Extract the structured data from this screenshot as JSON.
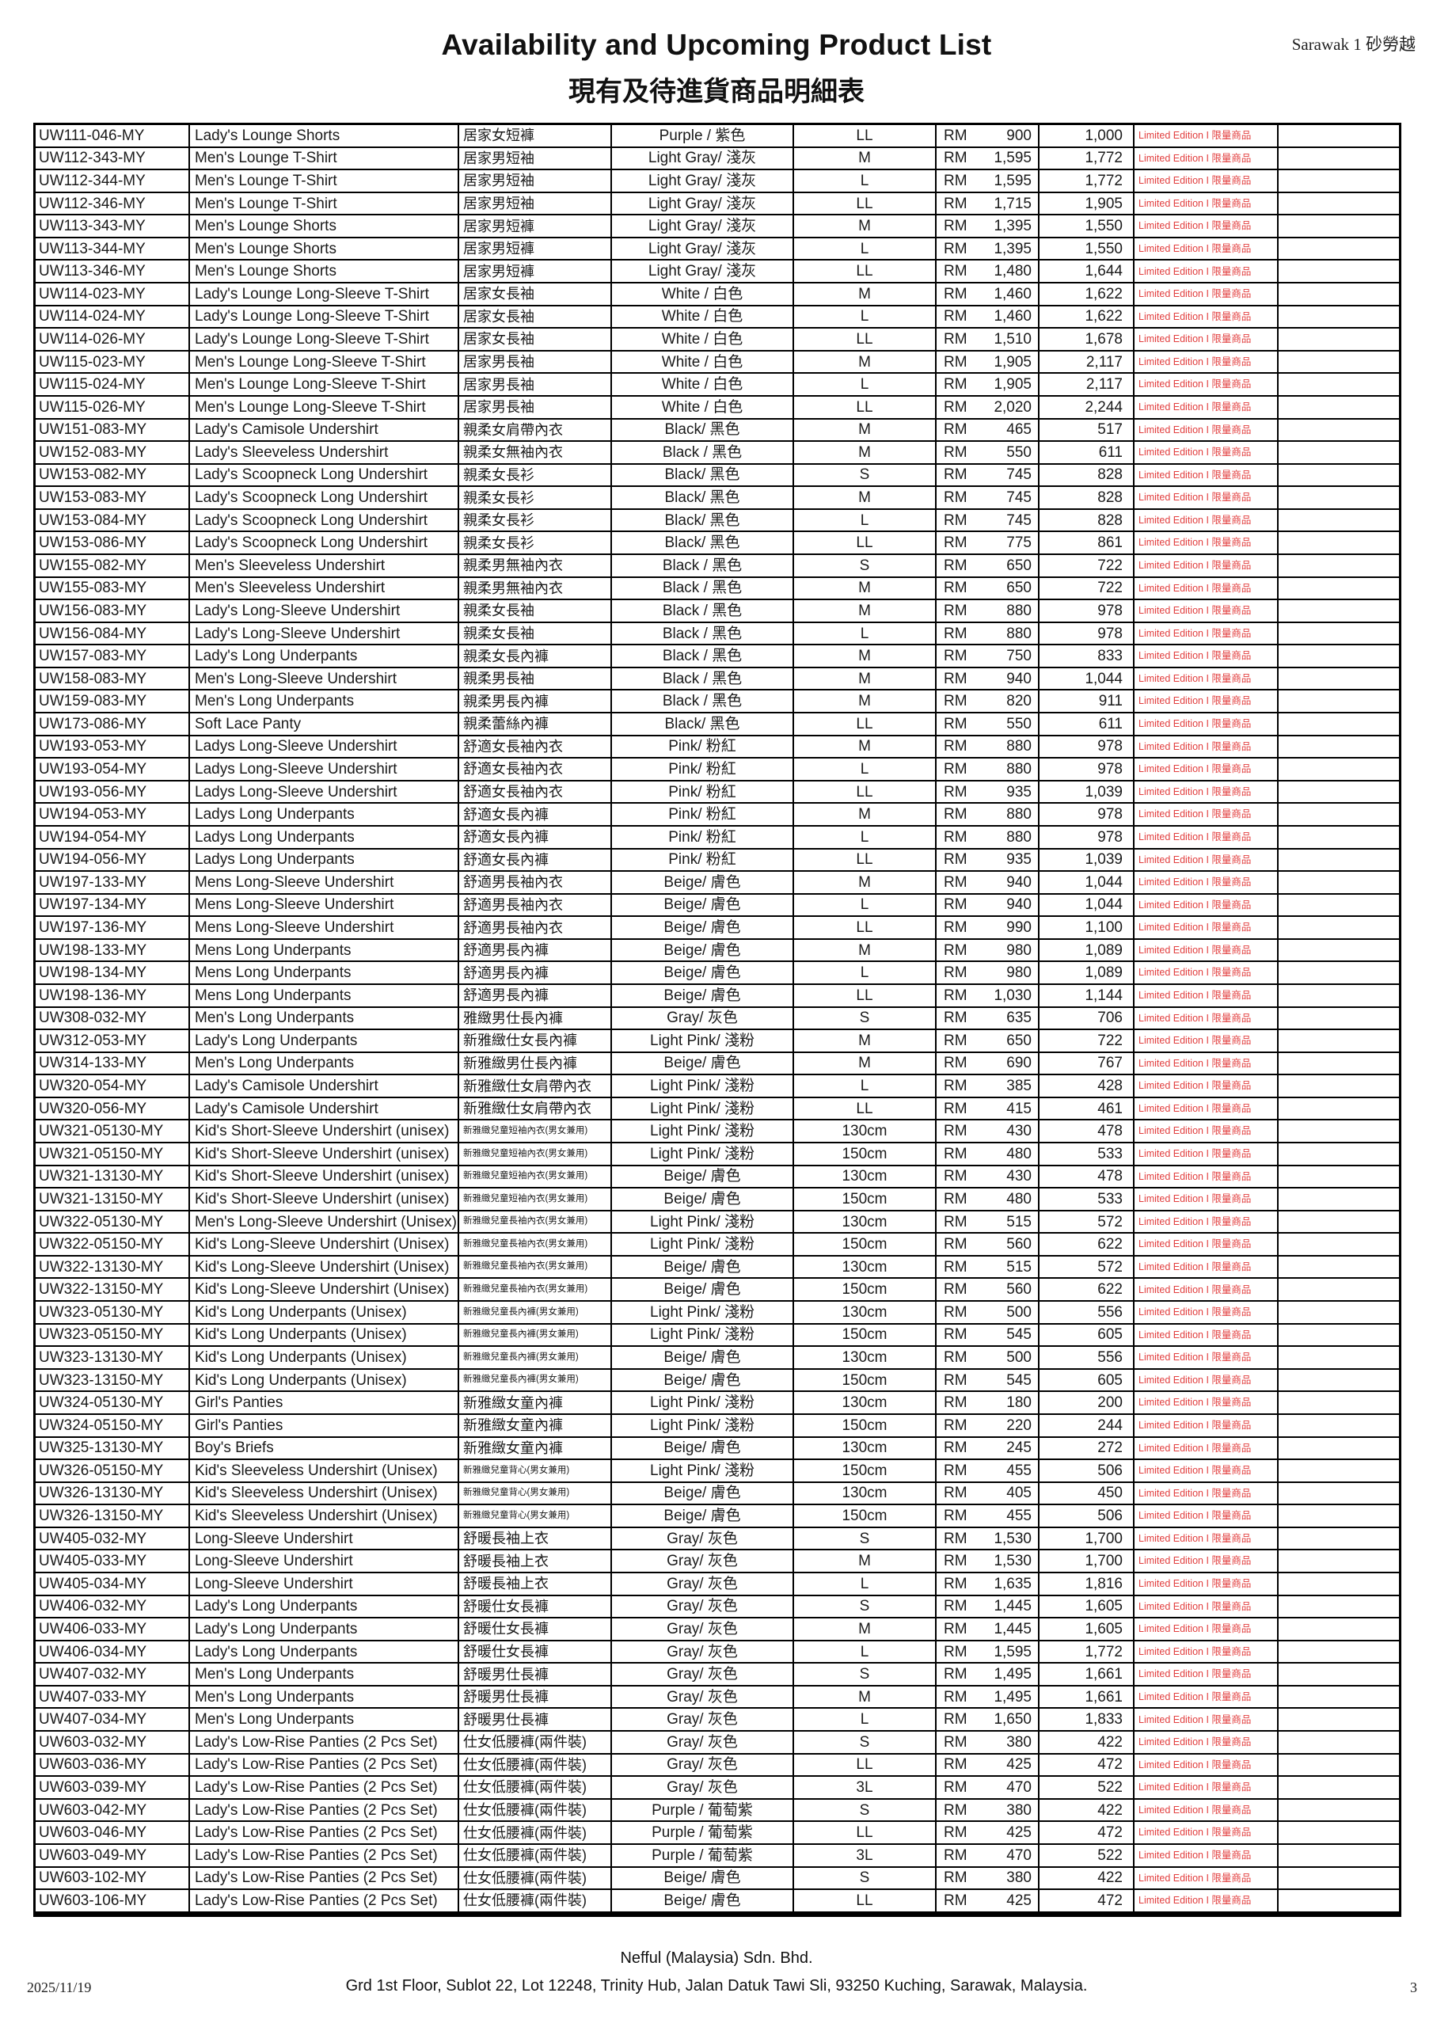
{
  "header": {
    "title": "Availability and Upcoming Product List",
    "subtitle_zh": "現有及待進貨商品明細表",
    "region": "Sarawak 1 砂勞越"
  },
  "table": {
    "badge_label": "Limited Edition I 限量商品",
    "badge_color": "#e23e3e",
    "currency": "RM",
    "columns": [
      "code",
      "name_en",
      "name_zh",
      "color",
      "size",
      "price",
      "qty",
      "small_zh_flag"
    ],
    "rows": [
      [
        "UW111-046-MY",
        "Lady's Lounge Shorts",
        "居家女短褲",
        "Purple / 紫色",
        "LL",
        "900",
        "1,000",
        0
      ],
      [
        "UW112-343-MY",
        "Men's Lounge T-Shirt",
        "居家男短袖",
        "Light Gray/ 淺灰",
        "M",
        "1,595",
        "1,772",
        0
      ],
      [
        "UW112-344-MY",
        "Men's Lounge T-Shirt",
        "居家男短袖",
        "Light Gray/ 淺灰",
        "L",
        "1,595",
        "1,772",
        0
      ],
      [
        "UW112-346-MY",
        "Men's Lounge T-Shirt",
        "居家男短袖",
        "Light Gray/ 淺灰",
        "LL",
        "1,715",
        "1,905",
        0
      ],
      [
        "UW113-343-MY",
        "Men's Lounge Shorts",
        "居家男短褲",
        "Light Gray/ 淺灰",
        "M",
        "1,395",
        "1,550",
        0
      ],
      [
        "UW113-344-MY",
        "Men's Lounge Shorts",
        "居家男短褲",
        "Light Gray/ 淺灰",
        "L",
        "1,395",
        "1,550",
        0
      ],
      [
        "UW113-346-MY",
        "Men's Lounge Shorts",
        "居家男短褲",
        "Light Gray/ 淺灰",
        "LL",
        "1,480",
        "1,644",
        0
      ],
      [
        "UW114-023-MY",
        "Lady's Lounge Long-Sleeve T-Shirt",
        "居家女長袖",
        "White / 白色",
        "M",
        "1,460",
        "1,622",
        0
      ],
      [
        "UW114-024-MY",
        "Lady's Lounge Long-Sleeve T-Shirt",
        "居家女長袖",
        "White / 白色",
        "L",
        "1,460",
        "1,622",
        0
      ],
      [
        "UW114-026-MY",
        "Lady's Lounge Long-Sleeve T-Shirt",
        "居家女長袖",
        "White / 白色",
        "LL",
        "1,510",
        "1,678",
        0
      ],
      [
        "UW115-023-MY",
        "Men's Lounge Long-Sleeve T-Shirt",
        "居家男長袖",
        "White / 白色",
        "M",
        "1,905",
        "2,117",
        0
      ],
      [
        "UW115-024-MY",
        "Men's Lounge Long-Sleeve T-Shirt",
        "居家男長袖",
        "White / 白色",
        "L",
        "1,905",
        "2,117",
        0
      ],
      [
        "UW115-026-MY",
        "Men's Lounge Long-Sleeve T-Shirt",
        "居家男長袖",
        "White / 白色",
        "LL",
        "2,020",
        "2,244",
        0
      ],
      [
        "UW151-083-MY",
        "Lady's Camisole Undershirt",
        "親柔女肩帶內衣",
        "Black/ 黑色",
        "M",
        "465",
        "517",
        0
      ],
      [
        "UW152-083-MY",
        "Lady's Sleeveless Undershirt",
        "親柔女無袖內衣",
        "Black / 黑色",
        "M",
        "550",
        "611",
        0
      ],
      [
        "UW153-082-MY",
        "Lady's Scoopneck Long Undershirt",
        "親柔女長衫",
        "Black/ 黑色",
        "S",
        "745",
        "828",
        0
      ],
      [
        "UW153-083-MY",
        "Lady's Scoopneck Long Undershirt",
        "親柔女長衫",
        "Black/ 黑色",
        "M",
        "745",
        "828",
        0
      ],
      [
        "UW153-084-MY",
        "Lady's Scoopneck Long Undershirt",
        "親柔女長衫",
        "Black/ 黑色",
        "L",
        "745",
        "828",
        0
      ],
      [
        "UW153-086-MY",
        "Lady's Scoopneck Long Undershirt",
        "親柔女長衫",
        "Black/ 黑色",
        "LL",
        "775",
        "861",
        0
      ],
      [
        "UW155-082-MY",
        "Men's Sleeveless Undershirt",
        "親柔男無袖內衣",
        "Black / 黑色",
        "S",
        "650",
        "722",
        0
      ],
      [
        "UW155-083-MY",
        "Men's Sleeveless Undershirt",
        "親柔男無袖內衣",
        "Black / 黑色",
        "M",
        "650",
        "722",
        0
      ],
      [
        "UW156-083-MY",
        "Lady's Long-Sleeve Undershirt",
        "親柔女長袖",
        "Black / 黑色",
        "M",
        "880",
        "978",
        0
      ],
      [
        "UW156-084-MY",
        "Lady's Long-Sleeve Undershirt",
        "親柔女長袖",
        "Black / 黑色",
        "L",
        "880",
        "978",
        0
      ],
      [
        "UW157-083-MY",
        "Lady's Long Underpants",
        "親柔女長內褲",
        "Black / 黑色",
        "M",
        "750",
        "833",
        0
      ],
      [
        "UW158-083-MY",
        "Men's Long-Sleeve Undershirt",
        "親柔男長袖",
        "Black / 黑色",
        "M",
        "940",
        "1,044",
        0
      ],
      [
        "UW159-083-MY",
        "Men's Long Underpants",
        "親柔男長內褲",
        "Black / 黑色",
        "M",
        "820",
        "911",
        0
      ],
      [
        "UW173-086-MY",
        "Soft Lace Panty",
        "親柔蕾絲內褲",
        "Black/ 黑色",
        "LL",
        "550",
        "611",
        0
      ],
      [
        "UW193-053-MY",
        "Ladys Long-Sleeve Undershirt",
        "舒適女長袖內衣",
        "Pink/ 粉紅",
        "M",
        "880",
        "978",
        0
      ],
      [
        "UW193-054-MY",
        "Ladys Long-Sleeve Undershirt",
        "舒適女長袖內衣",
        "Pink/ 粉紅",
        "L",
        "880",
        "978",
        0
      ],
      [
        "UW193-056-MY",
        "Ladys Long-Sleeve Undershirt",
        "舒適女長袖內衣",
        "Pink/ 粉紅",
        "LL",
        "935",
        "1,039",
        0
      ],
      [
        "UW194-053-MY",
        "Ladys Long Underpants",
        "舒適女長內褲",
        "Pink/ 粉紅",
        "M",
        "880",
        "978",
        0
      ],
      [
        "UW194-054-MY",
        "Ladys Long Underpants",
        "舒適女長內褲",
        "Pink/ 粉紅",
        "L",
        "880",
        "978",
        0
      ],
      [
        "UW194-056-MY",
        "Ladys Long Underpants",
        "舒適女長內褲",
        "Pink/ 粉紅",
        "LL",
        "935",
        "1,039",
        0
      ],
      [
        "UW197-133-MY",
        "Mens Long-Sleeve Undershirt",
        "舒適男長袖內衣",
        "Beige/ 膚色",
        "M",
        "940",
        "1,044",
        0
      ],
      [
        "UW197-134-MY",
        "Mens Long-Sleeve Undershirt",
        "舒適男長袖內衣",
        "Beige/ 膚色",
        "L",
        "940",
        "1,044",
        0
      ],
      [
        "UW197-136-MY",
        "Mens Long-Sleeve Undershirt",
        "舒適男長袖內衣",
        "Beige/ 膚色",
        "LL",
        "990",
        "1,100",
        0
      ],
      [
        "UW198-133-MY",
        "Mens Long Underpants",
        "舒適男長內褲",
        "Beige/ 膚色",
        "M",
        "980",
        "1,089",
        0
      ],
      [
        "UW198-134-MY",
        "Mens Long Underpants",
        "舒適男長內褲",
        "Beige/ 膚色",
        "L",
        "980",
        "1,089",
        0
      ],
      [
        "UW198-136-MY",
        "Mens Long Underpants",
        "舒適男長內褲",
        "Beige/ 膚色",
        "LL",
        "1,030",
        "1,144",
        0
      ],
      [
        "UW308-032-MY",
        "Men's Long Underpants",
        "雅緻男仕長內褲",
        "Gray/ 灰色",
        "S",
        "635",
        "706",
        0
      ],
      [
        "UW312-053-MY",
        "Lady's Long Underpants",
        "新雅緻仕女長內褲",
        "Light Pink/ 淺粉",
        "M",
        "650",
        "722",
        0
      ],
      [
        "UW314-133-MY",
        "Men's Long Underpants",
        "新雅緻男仕長內褲",
        "Beige/ 膚色",
        "M",
        "690",
        "767",
        0
      ],
      [
        "UW320-054-MY",
        "Lady's Camisole Undershirt",
        "新雅緻仕女肩帶內衣",
        "Light Pink/ 淺粉",
        "L",
        "385",
        "428",
        0
      ],
      [
        "UW320-056-MY",
        "Lady's Camisole Undershirt",
        "新雅緻仕女肩帶內衣",
        "Light Pink/ 淺粉",
        "LL",
        "415",
        "461",
        0
      ],
      [
        "UW321-05130-MY",
        "Kid's Short-Sleeve Undershirt (unisex)",
        "新雅緻兒童短袖內衣(男女兼用)",
        "Light Pink/ 淺粉",
        "130cm",
        "430",
        "478",
        1
      ],
      [
        "UW321-05150-MY",
        "Kid's Short-Sleeve Undershirt (unisex)",
        "新雅緻兒童短袖內衣(男女兼用)",
        "Light Pink/ 淺粉",
        "150cm",
        "480",
        "533",
        1
      ],
      [
        "UW321-13130-MY",
        "Kid's Short-Sleeve Undershirt (unisex)",
        "新雅緻兒童短袖內衣(男女兼用)",
        "Beige/ 膚色",
        "130cm",
        "430",
        "478",
        1
      ],
      [
        "UW321-13150-MY",
        "Kid's Short-Sleeve Undershirt (unisex)",
        "新雅緻兒童短袖內衣(男女兼用)",
        "Beige/ 膚色",
        "150cm",
        "480",
        "533",
        1
      ],
      [
        "UW322-05130-MY",
        "Men's Long-Sleeve Undershirt (Unisex)",
        "新雅緻兒童長袖內衣(男女兼用)",
        "Light Pink/ 淺粉",
        "130cm",
        "515",
        "572",
        1
      ],
      [
        "UW322-05150-MY",
        "Kid's Long-Sleeve Undershirt (Unisex)",
        "新雅緻兒童長袖內衣(男女兼用)",
        "Light Pink/ 淺粉",
        "150cm",
        "560",
        "622",
        1
      ],
      [
        "UW322-13130-MY",
        "Kid's Long-Sleeve Undershirt (Unisex)",
        "新雅緻兒童長袖內衣(男女兼用)",
        "Beige/ 膚色",
        "130cm",
        "515",
        "572",
        1
      ],
      [
        "UW322-13150-MY",
        "Kid's Long-Sleeve Undershirt (Unisex)",
        "新雅緻兒童長袖內衣(男女兼用)",
        "Beige/ 膚色",
        "150cm",
        "560",
        "622",
        1
      ],
      [
        "UW323-05130-MY",
        "Kid's Long Underpants (Unisex)",
        "新雅緻兒童長內褲(男女兼用)",
        "Light Pink/ 淺粉",
        "130cm",
        "500",
        "556",
        1
      ],
      [
        "UW323-05150-MY",
        "Kid's Long Underpants (Unisex)",
        "新雅緻兒童長內褲(男女兼用)",
        "Light Pink/ 淺粉",
        "150cm",
        "545",
        "605",
        1
      ],
      [
        "UW323-13130-MY",
        "Kid's Long Underpants (Unisex)",
        "新雅緻兒童長內褲(男女兼用)",
        "Beige/ 膚色",
        "130cm",
        "500",
        "556",
        1
      ],
      [
        "UW323-13150-MY",
        "Kid's Long Underpants (Unisex)",
        "新雅緻兒童長內褲(男女兼用)",
        "Beige/ 膚色",
        "150cm",
        "545",
        "605",
        1
      ],
      [
        "UW324-05130-MY",
        "Girl's Panties",
        "新雅緻女童內褲",
        "Light Pink/ 淺粉",
        "130cm",
        "180",
        "200",
        0
      ],
      [
        "UW324-05150-MY",
        "Girl's Panties",
        "新雅緻女童內褲",
        "Light Pink/ 淺粉",
        "150cm",
        "220",
        "244",
        0
      ],
      [
        "UW325-13130-MY",
        "Boy's Briefs",
        "新雅緻女童內褲",
        "Beige/ 膚色",
        "130cm",
        "245",
        "272",
        0
      ],
      [
        "UW326-05150-MY",
        "Kid's Sleeveless Undershirt (Unisex)",
        "新雅緻兒童背心(男女兼用)",
        "Light Pink/ 淺粉",
        "150cm",
        "455",
        "506",
        1
      ],
      [
        "UW326-13130-MY",
        "Kid's Sleeveless Undershirt (Unisex)",
        "新雅緻兒童背心(男女兼用)",
        "Beige/ 膚色",
        "130cm",
        "405",
        "450",
        1
      ],
      [
        "UW326-13150-MY",
        "Kid's Sleeveless Undershirt (Unisex)",
        "新雅緻兒童背心(男女兼用)",
        "Beige/ 膚色",
        "150cm",
        "455",
        "506",
        1
      ],
      [
        "UW405-032-MY",
        "Long-Sleeve Undershirt",
        "舒暖長袖上衣",
        "Gray/ 灰色",
        "S",
        "1,530",
        "1,700",
        0
      ],
      [
        "UW405-033-MY",
        "Long-Sleeve Undershirt",
        "舒暖長袖上衣",
        "Gray/ 灰色",
        "M",
        "1,530",
        "1,700",
        0
      ],
      [
        "UW405-034-MY",
        "Long-Sleeve Undershirt",
        "舒暖長袖上衣",
        "Gray/ 灰色",
        "L",
        "1,635",
        "1,816",
        0
      ],
      [
        "UW406-032-MY",
        "Lady's Long Underpants",
        "舒暖仕女長褲",
        "Gray/ 灰色",
        "S",
        "1,445",
        "1,605",
        0
      ],
      [
        "UW406-033-MY",
        "Lady's Long Underpants",
        "舒暖仕女長褲",
        "Gray/ 灰色",
        "M",
        "1,445",
        "1,605",
        0
      ],
      [
        "UW406-034-MY",
        "Lady's Long Underpants",
        "舒暖仕女長褲",
        "Gray/ 灰色",
        "L",
        "1,595",
        "1,772",
        0
      ],
      [
        "UW407-032-MY",
        "Men's Long Underpants",
        "舒暖男仕長褲",
        "Gray/ 灰色",
        "S",
        "1,495",
        "1,661",
        0
      ],
      [
        "UW407-033-MY",
        "Men's Long Underpants",
        "舒暖男仕長褲",
        "Gray/ 灰色",
        "M",
        "1,495",
        "1,661",
        0
      ],
      [
        "UW407-034-MY",
        "Men's Long Underpants",
        "舒暖男仕長褲",
        "Gray/ 灰色",
        "L",
        "1,650",
        "1,833",
        0
      ],
      [
        "UW603-032-MY",
        "Lady's Low-Rise Panties (2 Pcs Set)",
        "仕女低腰褲(兩件裝)",
        "Gray/ 灰色",
        "S",
        "380",
        "422",
        0
      ],
      [
        "UW603-036-MY",
        "Lady's Low-Rise Panties (2 Pcs Set)",
        "仕女低腰褲(兩件裝)",
        "Gray/ 灰色",
        "LL",
        "425",
        "472",
        0
      ],
      [
        "UW603-039-MY",
        "Lady's Low-Rise Panties (2 Pcs Set)",
        "仕女低腰褲(兩件裝)",
        "Gray/ 灰色",
        "3L",
        "470",
        "522",
        0
      ],
      [
        "UW603-042-MY",
        "Lady's Low-Rise Panties (2 Pcs Set)",
        "仕女低腰褲(兩件裝)",
        "Purple / 葡萄紫",
        "S",
        "380",
        "422",
        0
      ],
      [
        "UW603-046-MY",
        "Lady's Low-Rise Panties (2 Pcs Set)",
        "仕女低腰褲(兩件裝)",
        "Purple / 葡萄紫",
        "LL",
        "425",
        "472",
        0
      ],
      [
        "UW603-049-MY",
        "Lady's Low-Rise Panties (2 Pcs Set)",
        "仕女低腰褲(兩件裝)",
        "Purple / 葡萄紫",
        "3L",
        "470",
        "522",
        0
      ],
      [
        "UW603-102-MY",
        "Lady's Low-Rise Panties (2 Pcs Set)",
        "仕女低腰褲(兩件裝)",
        "Beige/ 膚色",
        "S",
        "380",
        "422",
        0
      ],
      [
        "UW603-106-MY",
        "Lady's Low-Rise Panties (2 Pcs Set)",
        "仕女低腰褲(兩件裝)",
        "Beige/ 膚色",
        "LL",
        "425",
        "472",
        0
      ]
    ]
  },
  "footer": {
    "date": "2025/11/19",
    "company": "Nefful (Malaysia) Sdn. Bhd.",
    "address": "Grd 1st Floor, Sublot 22, Lot 12248, Trinity Hub, Jalan Datuk Tawi Sli, 93250 Kuching, Sarawak, Malaysia.",
    "page_number": "3"
  }
}
